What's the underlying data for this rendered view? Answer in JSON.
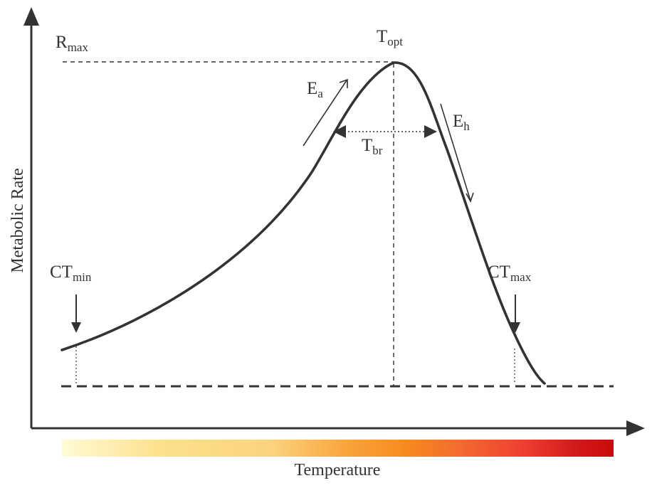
{
  "diagram": {
    "axes": {
      "x_label": "Temperature",
      "y_label": "Metabolic Rate"
    },
    "labels": {
      "r_max": {
        "base": "R",
        "sub": "max"
      },
      "t_opt": {
        "base": "T",
        "sub": "opt"
      },
      "e_a": {
        "base": "E",
        "sub": "a"
      },
      "e_h": {
        "base": "E",
        "sub": "h"
      },
      "t_br": {
        "base": "T",
        "sub": "br"
      },
      "ct_min": {
        "base": "CT",
        "sub": "min"
      },
      "ct_max": {
        "base": "CT",
        "sub": "max"
      }
    },
    "colors": {
      "ink": "#333333",
      "gradient": [
        "#fffbd6",
        "#fde08c",
        "#fbd37e",
        "#f9a33a",
        "#f78c1e",
        "#f46b2f",
        "#ee3d31",
        "#d21a1a",
        "#c90a0a"
      ]
    }
  }
}
